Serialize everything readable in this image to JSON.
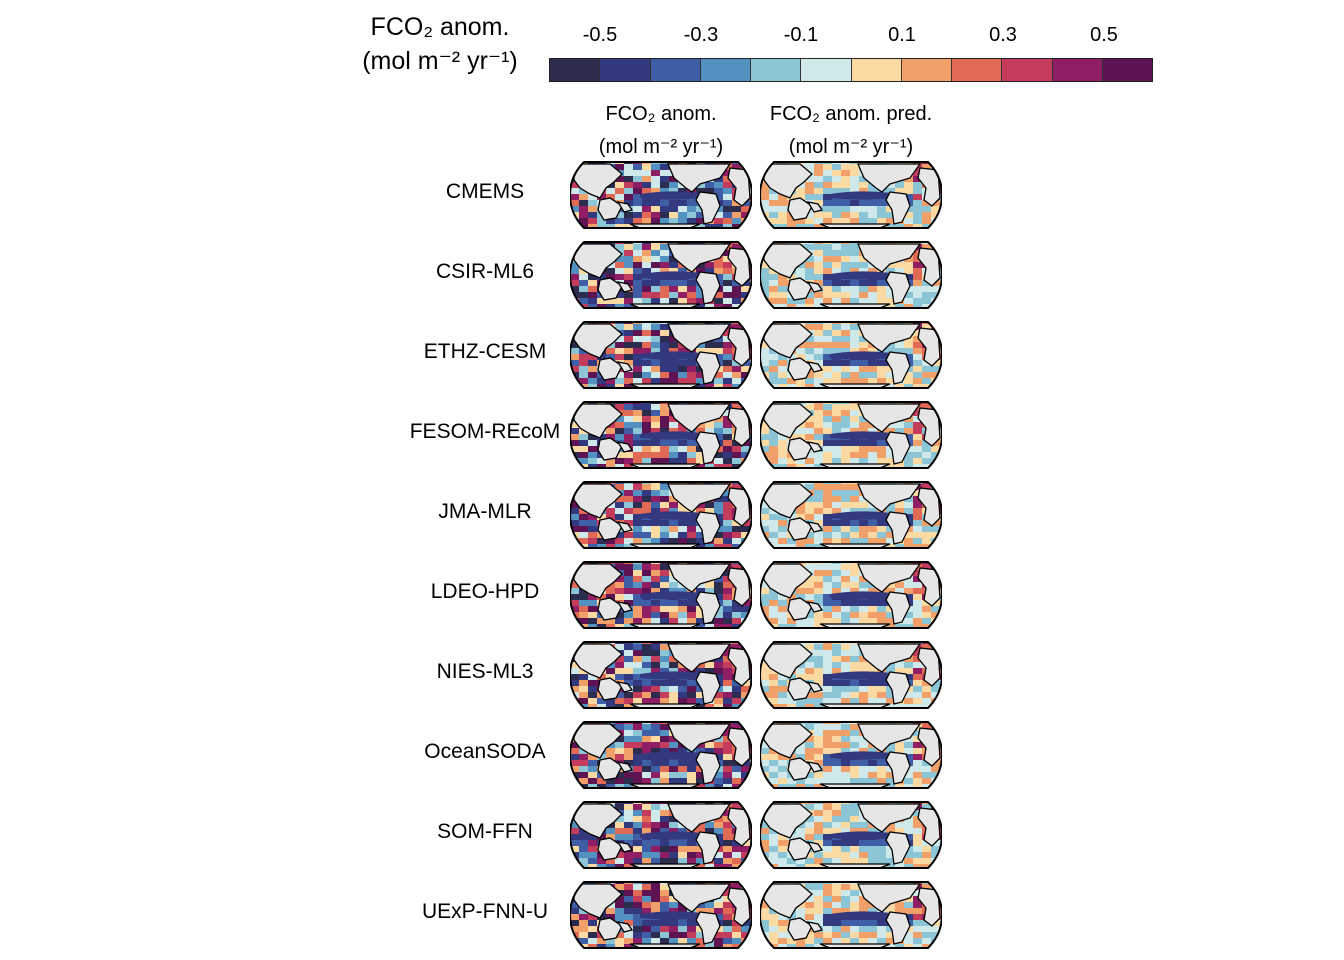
{
  "colorbar": {
    "title_line1": "FCO₂ anom.",
    "title_line2": "(mol m⁻² yr⁻¹)",
    "ticks": [
      "-0.5",
      "-0.3",
      "-0.1",
      "0.1",
      "0.3",
      "0.5"
    ],
    "colors": [
      "#2b2c4e",
      "#33397e",
      "#3f5ea5",
      "#5392c0",
      "#8cc6d6",
      "#cfe9ea",
      "#fbd9a3",
      "#f1a06a",
      "#e06a56",
      "#c43c5c",
      "#8f1e64",
      "#5e1353"
    ]
  },
  "columns": [
    {
      "line1": "FCO₂ anom.",
      "line2": "(mol m⁻² yr⁻¹)"
    },
    {
      "line1": "FCO₂ anom. pred.",
      "line2": "(mol m⁻² yr⁻¹)"
    }
  ],
  "rows": [
    "CMEMS",
    "CSIR-ML6",
    "ETHZ-CESM",
    "FESOM-REcoM",
    "JMA-MLR",
    "LDEO-HPD",
    "NIES-ML3",
    "OceanSODA",
    "SOM-FFN",
    "UExP-FNN-U"
  ]
}
